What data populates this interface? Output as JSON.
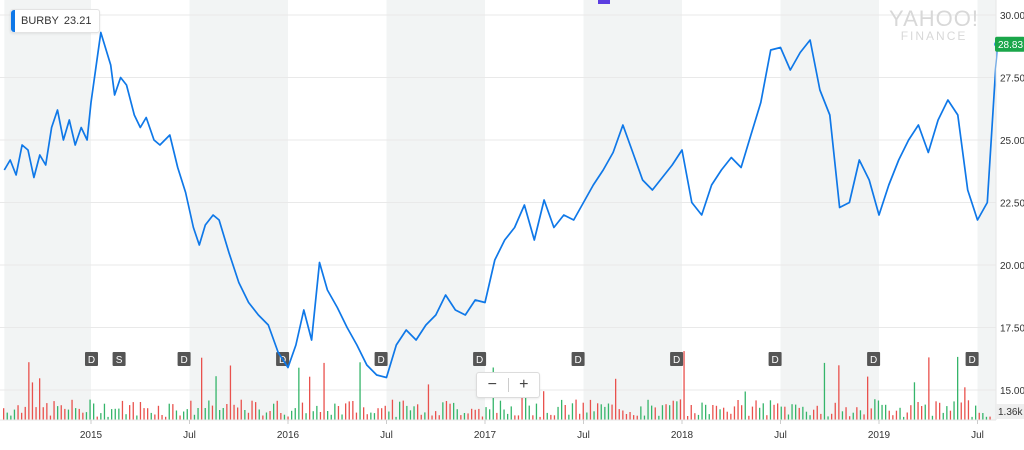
{
  "ticker": {
    "symbol": "BURBY",
    "price": "23.21",
    "last_price": "28.83",
    "volume_label": "1.36k"
  },
  "watermark": {
    "line1": "YAHOO!",
    "line2": "FINANCE"
  },
  "zoom": {
    "minus": "−",
    "plus": "+"
  },
  "colors": {
    "line": "#0f78e8",
    "last_price_badge": "#1aa64a",
    "vol_up": "#35b56a",
    "vol_down": "#e9514d",
    "band": "#f2f4f4"
  },
  "chart_data": {
    "type": "line",
    "ylim": [
      13.8,
      30.6
    ],
    "yticks": [
      "15.00",
      "17.50",
      "20.00",
      "22.50",
      "25.00",
      "27.50",
      "30.00"
    ],
    "xticks": [
      "2015",
      "Jul",
      "2016",
      "Jul",
      "2017",
      "Jul",
      "2018",
      "Jul",
      "2019",
      "Jul"
    ],
    "xstart": 2014.56,
    "xend": 2019.6,
    "events": [
      {
        "label": "D",
        "x": 2014.53
      },
      {
        "label": "S",
        "x": 2014.67
      },
      {
        "label": "D",
        "x": 2015.0
      },
      {
        "label": "D",
        "x": 2015.5
      },
      {
        "label": "D",
        "x": 2016.0
      },
      {
        "label": "D",
        "x": 2016.5
      },
      {
        "label": "D",
        "x": 2017.0
      },
      {
        "label": "D",
        "x": 2017.5
      },
      {
        "label": "D",
        "x": 2018.0
      },
      {
        "label": "D",
        "x": 2018.5
      },
      {
        "label": "D",
        "x": 2019.0
      },
      {
        "label": "D",
        "x": 2019.5
      }
    ],
    "series": [
      {
        "x": [
          2014.56,
          2014.59,
          2014.62,
          2014.65,
          2014.68,
          2014.71,
          2014.74,
          2014.77,
          2014.8,
          2014.83,
          2014.86,
          2014.89,
          2014.92,
          2014.95,
          2014.98,
          2015.0,
          2015.05,
          2015.1,
          2015.12,
          2015.15,
          2015.18,
          2015.22,
          2015.25,
          2015.28,
          2015.32,
          2015.35,
          2015.4,
          2015.44,
          2015.48,
          2015.52,
          2015.55,
          2015.58,
          2015.62,
          2015.65,
          2015.7,
          2015.75,
          2015.8,
          2015.85,
          2015.9,
          2015.95,
          2016.0,
          2016.04,
          2016.08,
          2016.12,
          2016.16,
          2016.2,
          2016.25,
          2016.3,
          2016.35,
          2016.4,
          2016.45,
          2016.5,
          2016.55,
          2016.6,
          2016.65,
          2016.7,
          2016.75,
          2016.8,
          2016.85,
          2016.9,
          2016.95,
          2017.0,
          2017.05,
          2017.1,
          2017.15,
          2017.2,
          2017.25,
          2017.3,
          2017.35,
          2017.4,
          2017.45,
          2017.5,
          2017.55,
          2017.6,
          2017.65,
          2017.7,
          2017.75,
          2017.8,
          2017.85,
          2017.9,
          2017.95,
          2018.0,
          2018.05,
          2018.1,
          2018.15,
          2018.2,
          2018.25,
          2018.3,
          2018.35,
          2018.4,
          2018.45,
          2018.5,
          2018.55,
          2018.6,
          2018.65,
          2018.7,
          2018.75,
          2018.8,
          2018.85,
          2018.9,
          2018.95,
          2019.0,
          2019.05,
          2019.1,
          2019.15,
          2019.2,
          2019.25,
          2019.3,
          2019.35,
          2019.4,
          2019.45,
          2019.5,
          2019.55,
          2019.6
        ],
        "values": [
          23.8,
          24.2,
          23.6,
          24.8,
          24.6,
          23.5,
          24.4,
          24.0,
          25.5,
          26.2,
          25.0,
          25.8,
          24.8,
          25.5,
          25.0,
          26.5,
          29.3,
          28.0,
          26.8,
          27.5,
          27.2,
          26.0,
          25.5,
          25.9,
          25.0,
          24.8,
          25.2,
          23.9,
          22.9,
          21.5,
          20.8,
          21.6,
          22.0,
          21.8,
          20.5,
          19.3,
          18.5,
          18.0,
          17.6,
          16.5,
          15.9,
          16.8,
          18.2,
          17.0,
          20.1,
          19.0,
          18.3,
          17.5,
          16.8,
          16.0,
          15.6,
          15.5,
          16.8,
          17.4,
          17.0,
          17.6,
          18.0,
          18.8,
          18.2,
          18.0,
          18.6,
          18.5,
          20.2,
          21.0,
          21.5,
          22.4,
          21.0,
          22.6,
          21.5,
          22.0,
          21.8,
          22.5,
          23.2,
          23.8,
          24.5,
          25.6,
          24.5,
          23.4,
          23.0,
          23.5,
          24.0,
          24.6,
          22.5,
          22.0,
          23.2,
          23.8,
          24.3,
          23.9,
          25.2,
          26.5,
          28.6,
          28.7,
          27.8,
          28.5,
          29.0,
          27.0,
          26.0,
          22.3,
          22.5,
          24.2,
          23.4,
          22.0,
          23.2,
          24.2,
          25.0,
          25.6,
          24.5,
          25.8,
          26.6,
          26.0,
          23.0,
          21.8,
          22.5,
          28.83
        ]
      }
    ]
  }
}
